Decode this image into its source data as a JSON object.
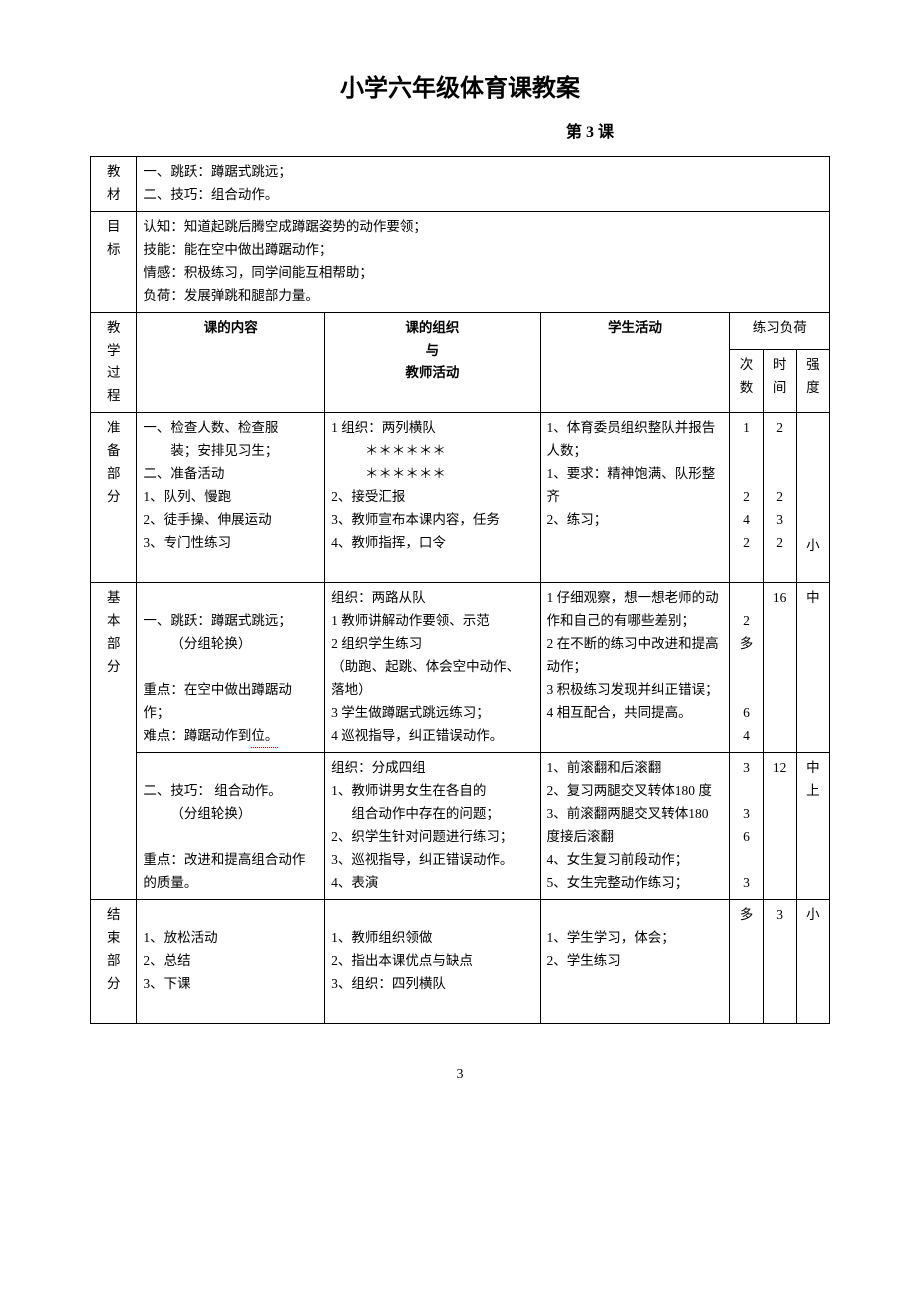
{
  "title": "小学六年级体育课教案",
  "subtitle": "第 3 课",
  "pageNumber": "3",
  "rowLabels": {
    "material": "教材",
    "objective": "目标",
    "process": "教学过程",
    "prep": "准备部分",
    "basic": "基本部分",
    "end": "结束部分"
  },
  "headers": {
    "content": "课的内容",
    "org": "课的组织\n与\n教师活动",
    "student": "学生活动",
    "loadGroup": "练习负荷",
    "count": "次数",
    "time": "时间",
    "intensity": "强度"
  },
  "material": {
    "l1": "一、跳跃：蹲踞式跳远；",
    "l2": "二、技巧：组合动作。"
  },
  "objective": {
    "l1": "认知：知道起跳后腾空成蹲踞姿势的动作要领；",
    "l2": "技能：能在空中做出蹲踞动作；",
    "l3": "情感：积极练习，同学间能互相帮助；",
    "l4": "负荷：发展弹跳和腿部力量。"
  },
  "prep": {
    "content": {
      "l1": "一、检查人数、检查服",
      "l2": "装；安排见习生；",
      "l3": "二、准备活动",
      "l4": "1、队列、慢跑",
      "l5": "2、徒手操、伸展运动",
      "l6": "3、专门性练习"
    },
    "org": {
      "l1": "1 组织：两列横队",
      "l2": "＊＊＊＊＊＊",
      "l3": "＊＊＊＊＊＊",
      "l4": "2、接受汇报",
      "l5": "3、教师宣布本课内容，任务",
      "l6": "4、教师指挥，口令"
    },
    "student": {
      "l1": "1、体育委员组织整队并报告人数；",
      "l2": "1、要求：精神饱满、队形整齐",
      "l3": "2、练习；"
    },
    "count": {
      "l1": "1",
      "l2": "2",
      "l3": "4",
      "l4": "2"
    },
    "time": {
      "l1": "2",
      "l2": "2",
      "l3": "3",
      "l4": "2"
    },
    "intensity": "小"
  },
  "basic1": {
    "content": {
      "l1": "一、跳跃：蹲踞式跳远；",
      "l2": "（分组轮换）",
      "l3": "重点：在空中做出蹲踞动作；",
      "l4a": "难点：蹲踞动作到",
      "l4b": "位。"
    },
    "org": {
      "l1": "组织：两路从队",
      "l2": "1 教师讲解动作要领、示范",
      "l3": "2 组织学生练习",
      "l4": "（助跑、起跳、体会空中动作、落地）",
      "l5": "3 学生做蹲踞式跳远练习；",
      "l6": "4 巡视指导，纠正错误动作。"
    },
    "student": {
      "l1": "1 仔细观察，想一想老师的动作和自己的有哪些差别；",
      "l2": "2 在不断的练习中改进和提高动作；",
      "l3": "3 积极练习发现并纠正错误；",
      "l4": "4 相互配合，共同提高。"
    },
    "count": {
      "l1": "2",
      "l2": "多",
      "l3": "6",
      "l4": "4"
    },
    "time": "16",
    "intensity": "中"
  },
  "basic2": {
    "content": {
      "l1": "二、技巧： 组合动作。",
      "l2": "（分组轮换）",
      "l3": "重点：改进和提高组合动作的质量。"
    },
    "org": {
      "l1": "组织：分成四组",
      "l2": "1、教师讲男女生在各自的",
      "l3": "组合动作中存在的问题；",
      "l4": "2、织学生针对问题进行练习；",
      "l5": "3、巡视指导，纠正错误动作。",
      "l6": "4、表演"
    },
    "student": {
      "l1": "1、前滚翻和后滚翻",
      "l2": "2、复习两腿交叉转体180 度",
      "l3": "3、前滚翻两腿交叉转体180 度接后滚翻",
      "l4": "4、女生复习前段动作；",
      "l5": "5、女生完整动作练习；"
    },
    "count": {
      "l1": "3",
      "l2": "3",
      "l3": "6",
      "l4": "3"
    },
    "time": "12",
    "intensity": "中上"
  },
  "end": {
    "content": {
      "l1": "1、放松活动",
      "l2": "2、总结",
      "l3": "3、下课"
    },
    "org": {
      "l1": "1、教师组织领做",
      "l2": "2、指出本课优点与缺点",
      "l3": "3、组织：四列横队"
    },
    "student": {
      "l1": "1、学生学习，体会；",
      "l2": "2、学生练习"
    },
    "count": "多",
    "time": "3",
    "intensity": "小"
  }
}
